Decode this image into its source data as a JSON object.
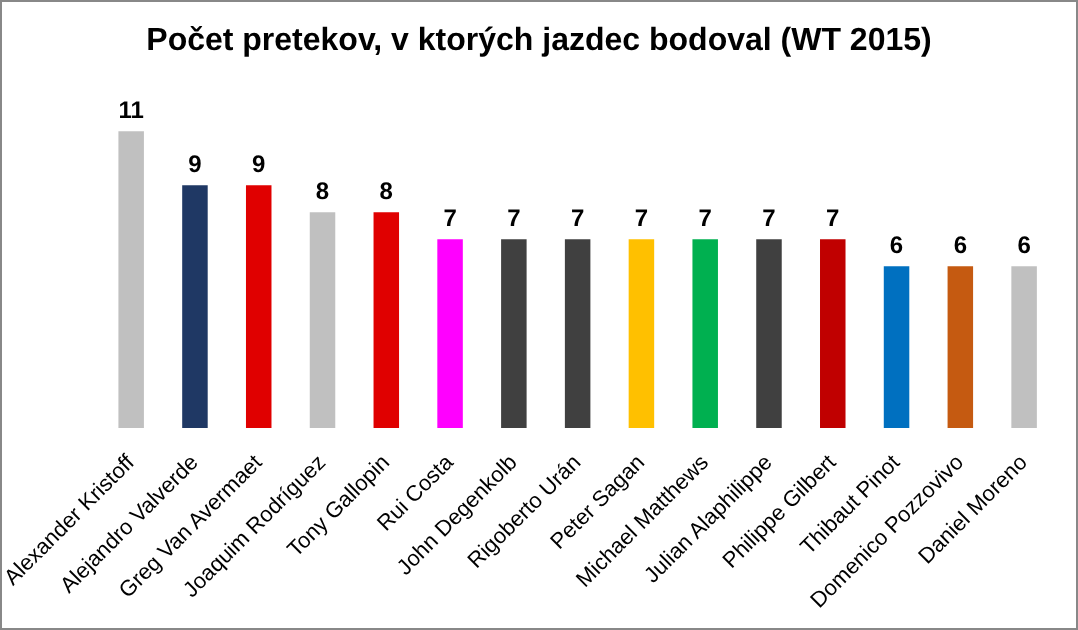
{
  "chart_data": {
    "type": "bar",
    "title": "Počet pretekov, v ktorých jazdec bodoval (WT 2015)",
    "categories": [
      "Alexander Kristoff",
      "Alejandro Valverde",
      "Greg Van Avermaet",
      "Joaquim Rodríguez",
      "Tony Gallopin",
      "Rui Costa",
      "John Degenkolb",
      "Rigoberto Urán",
      "Peter Sagan",
      "Michael Matthews",
      "Julian Alaphilippe",
      "Philippe Gilbert",
      "Thibaut Pinot",
      "Domenico Pozzovivo",
      "Daniel Moreno"
    ],
    "values": [
      11,
      9,
      9,
      8,
      8,
      7,
      7,
      7,
      7,
      7,
      7,
      7,
      6,
      6,
      6
    ],
    "colors": [
      "#c0c0c0",
      "#1f3864",
      "#e00000",
      "#c0c0c0",
      "#e00000",
      "#ff00ff",
      "#404040",
      "#404040",
      "#ffc000",
      "#00b050",
      "#404040",
      "#c00000",
      "#0070c0",
      "#c55a11",
      "#c0c0c0"
    ],
    "data_labels": true,
    "grid": false,
    "legend": false
  }
}
